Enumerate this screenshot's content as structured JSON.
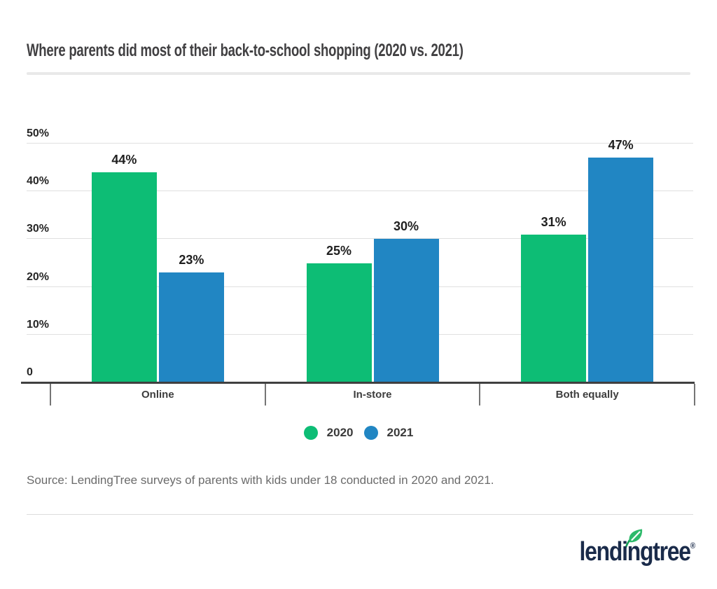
{
  "title": "Where parents did most of their back-to-school shopping (2020 vs. 2021)",
  "chart_data": {
    "type": "bar",
    "title": "Where parents did most of their back-to-school shopping (2020 vs. 2021)",
    "categories": [
      "Online",
      "In-store",
      "Both equally"
    ],
    "series": [
      {
        "name": "2020",
        "color": "#0dbd75",
        "values": [
          44,
          25,
          31
        ]
      },
      {
        "name": "2021",
        "color": "#2186c3",
        "values": [
          23,
          30,
          47
        ]
      }
    ],
    "data_labels": [
      "44%",
      "23%",
      "25%",
      "30%",
      "31%",
      "47%"
    ],
    "value_suffix": "%",
    "xlabel": "",
    "ylabel": "",
    "ylim": [
      0,
      50
    ],
    "yticks": [
      0,
      10,
      20,
      30,
      40,
      50
    ],
    "ytick_labels": [
      "0",
      "10%",
      "20%",
      "30%",
      "40%",
      "50%"
    ],
    "grid": true,
    "legend_position": "bottom-center"
  },
  "legend": {
    "items": [
      {
        "label": "2020",
        "color": "#0dbd75"
      },
      {
        "label": "2021",
        "color": "#2186c3"
      }
    ]
  },
  "source": {
    "text": "Source: LendingTree surveys of parents with kids under 18 conducted in 2020 and 2021."
  },
  "branding": {
    "wordmark": "lendingtree",
    "registered": "®",
    "leaf_icon": "leaf-icon",
    "colors": {
      "navy": "#1a2b4a",
      "leaf_green": "#2eba6b",
      "leaf_stem": "#149e56",
      "leaf_vein": "#ffffff"
    }
  },
  "colors": {
    "series_2020_green": "#0dbd75",
    "series_2021_blue": "#2186c3",
    "gridline": "#e0e0e0",
    "axis_line": "#404040",
    "title_text": "#414042",
    "source_text": "#6b6b6b",
    "divider": "#e9e9e9"
  }
}
